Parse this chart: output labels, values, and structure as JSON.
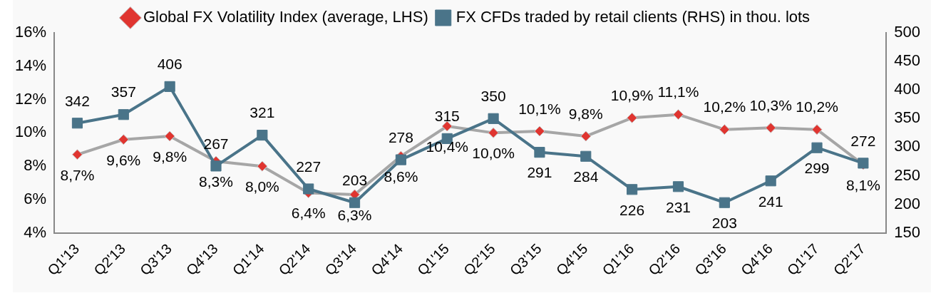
{
  "chart_data": {
    "type": "line",
    "categories": [
      "Q1'13",
      "Q2'13",
      "Q3'13",
      "Q4'13",
      "Q1'14",
      "Q2'14",
      "Q3'14",
      "Q4'14",
      "Q1'15",
      "Q2'15",
      "Q3'15",
      "Q4'15",
      "Q1'16",
      "Q2'16",
      "Q3'16",
      "Q4'16",
      "Q1'17",
      "Q2'17"
    ],
    "series": [
      {
        "name": "Global FX Volatility Index (average, LHS)",
        "color": "#a6a6a6",
        "marker": "diamond",
        "colors": [
          "#e03530",
          "#e03530",
          "#e03530",
          "#e03530",
          "#e03530",
          "#e03530",
          "#e03530",
          "#e03530",
          "#e03530",
          "#e03530",
          "#e03530",
          "#e03530",
          "#e03530",
          "#e03530",
          "#e03530",
          "#e03530",
          "#e03530",
          "#e03530"
        ],
        "values": [
          8.7,
          9.6,
          9.8,
          8.3,
          8.0,
          6.4,
          6.3,
          8.6,
          10.4,
          10.0,
          10.1,
          9.8,
          10.9,
          11.1,
          10.2,
          10.3,
          10.2,
          8.1
        ],
        "value_labels": [
          "8,7%",
          "9,6%",
          "9,8%",
          "8,3%",
          "8,0%",
          "6,4%",
          "6,3%",
          "8,6%",
          "10,4%",
          "10,0%",
          "10,1%",
          "9,8%",
          "10,9%",
          "11,1%",
          "10,2%",
          "10,3%",
          "10,2%",
          "8,1%"
        ]
      },
      {
        "name": "FX CFDs traded by retail clients (RHS) in thou. lots",
        "color": "#4a7489",
        "marker": "square",
        "axis": "y2",
        "values": [
          342,
          357,
          406,
          267,
          321,
          227,
          203,
          278,
          315,
          350,
          291,
          284,
          226,
          231,
          203,
          241,
          299,
          272
        ],
        "value_labels": [
          "342",
          "357",
          "406",
          "267",
          "321",
          "227",
          "203",
          "278",
          "315",
          "350",
          "291",
          "284",
          "226",
          "231",
          "203",
          "241",
          "299",
          "272"
        ]
      }
    ],
    "ylim": [
      4,
      16
    ],
    "yticks": [
      {
        "value": 4,
        "label": "4%"
      },
      {
        "value": 6,
        "label": "6%"
      },
      {
        "value": 8,
        "label": "8%"
      },
      {
        "value": 10,
        "label": "10%"
      },
      {
        "value": 12,
        "label": "12%"
      },
      {
        "value": 14,
        "label": "14%"
      },
      {
        "value": 16,
        "label": "16%"
      }
    ],
    "y2lim": [
      150,
      500
    ],
    "y2ticks": [
      150,
      200,
      250,
      300,
      350,
      400,
      450,
      500
    ],
    "grid": false,
    "legend": "top"
  }
}
